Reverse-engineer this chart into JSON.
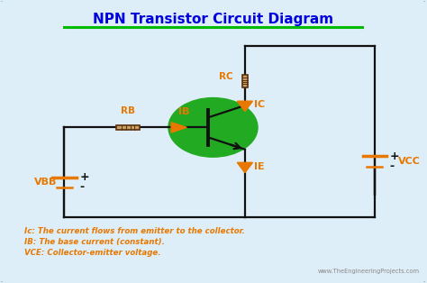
{
  "title": "NPN Transistor Circuit Diagram",
  "title_color": "#0000dd",
  "title_underline_color": "#00bb00",
  "bg_color": "#ddeef8",
  "border_color": "#5599cc",
  "circuit_line_color": "#111111",
  "orange_color": "#e87800",
  "green_circle_color": "#22aa22",
  "resistor_body_color": "#c8a060",
  "resistor_stripe_color": "#5a3010",
  "website_color": "#888888",
  "legend_ic": "Ic: The current flows from emitter to the collector.",
  "legend_ib": "IB: The base current (constant).",
  "legend_vce": "VCE: Collector-emitter voltage.",
  "website": "www.TheEngineeringProjects.com",
  "label_vbb": "VBB",
  "label_vcc": "VCC",
  "label_rb": "RB",
  "label_rc": "RC",
  "label_ib": "IB",
  "label_ic": "IC",
  "label_ie": "IE"
}
